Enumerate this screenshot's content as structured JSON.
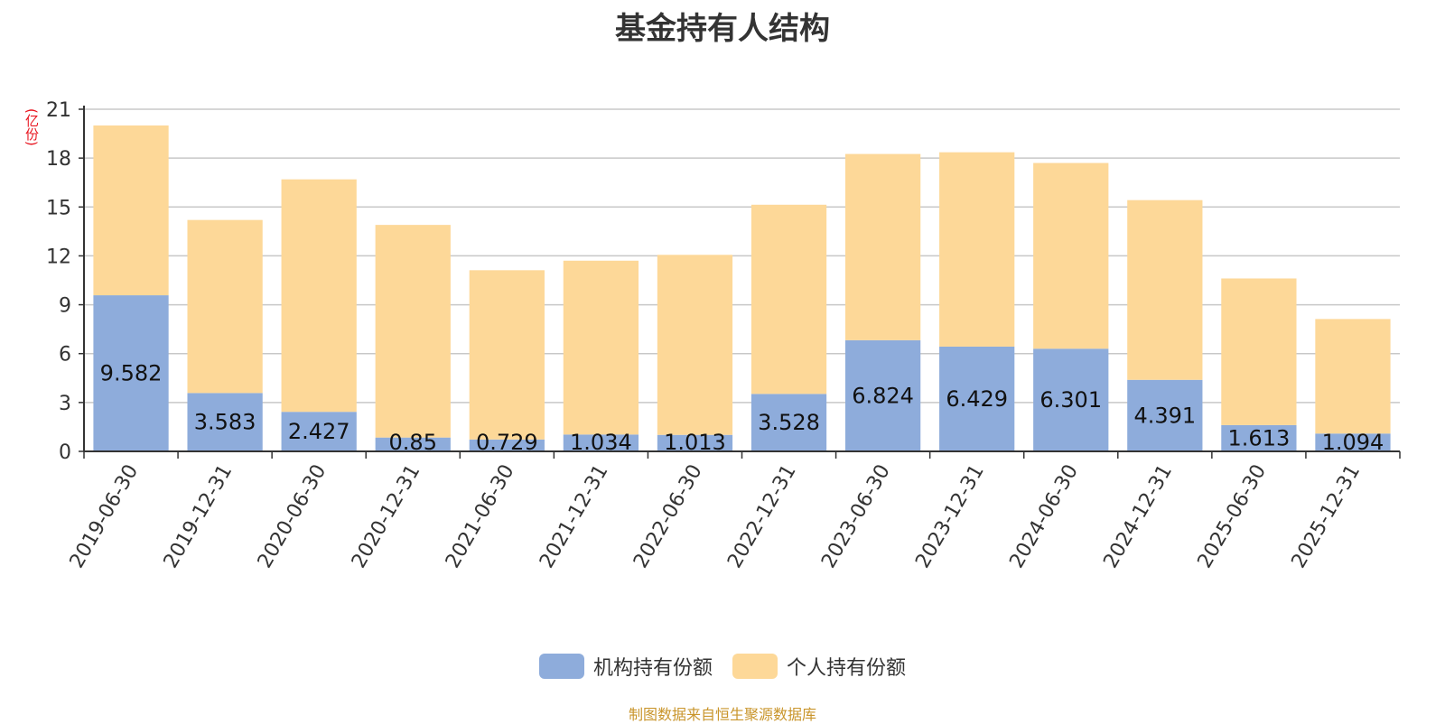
{
  "chart_data": {
    "type": "bar",
    "stacked": true,
    "title": "基金持有人结构",
    "ylabel": "(亿份)",
    "ylim": [
      0,
      21
    ],
    "yticks": [
      0,
      3,
      6,
      9,
      12,
      15,
      18,
      21
    ],
    "categories": [
      "2019-06-30",
      "2019-12-31",
      "2020-06-30",
      "2020-12-31",
      "2021-06-30",
      "2021-12-31",
      "2022-06-30",
      "2022-12-31",
      "2023-06-30",
      "2023-12-31",
      "2024-06-30",
      "2024-12-31",
      "2025-06-30",
      "2025-12-31"
    ],
    "series": [
      {
        "name": "机构持有份额",
        "color": "#8eacdb",
        "values": [
          9.582,
          3.583,
          2.427,
          0.85,
          0.729,
          1.034,
          1.013,
          3.528,
          6.824,
          6.429,
          6.301,
          4.391,
          1.613,
          1.094
        ],
        "labels": [
          "9.582",
          "3.583",
          "2.427",
          "0.85",
          "0.729",
          "1.034",
          "1.013",
          "3.528",
          "6.824",
          "6.429",
          "6.301",
          "4.391",
          "1.613",
          "1.094"
        ]
      },
      {
        "name": "个人持有份额",
        "color": "#fdd898",
        "values": [
          10.42,
          10.62,
          14.27,
          13.05,
          10.39,
          10.67,
          11.05,
          11.61,
          11.43,
          11.93,
          11.4,
          11.03,
          9.0,
          7.03
        ]
      }
    ],
    "legend_position": "bottom",
    "grid": true
  },
  "source_note": "制图数据来自恒生聚源数据库"
}
